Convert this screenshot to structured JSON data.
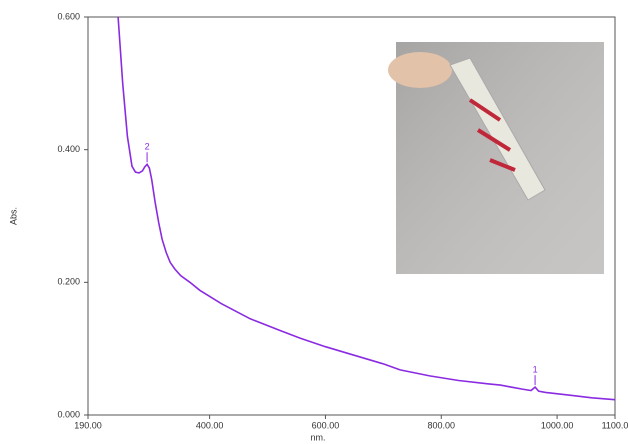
{
  "chart_data": {
    "type": "line",
    "xlabel": "nm.",
    "ylabel": "Abs.",
    "x": [
      242,
      250,
      258,
      266,
      272,
      278,
      284,
      288,
      292,
      296,
      300,
      306,
      312,
      318,
      325,
      332,
      340,
      350,
      366,
      383,
      420,
      470,
      520,
      556,
      600,
      650,
      700,
      729,
      780,
      830,
      880,
      902,
      940,
      955,
      962,
      968,
      980,
      1020,
      1060,
      1100
    ],
    "series": [
      {
        "color": "#8a2be2",
        "values": [
          0.6,
          0.5,
          0.42,
          0.375,
          0.366,
          0.365,
          0.368,
          0.374,
          0.378,
          0.372,
          0.355,
          0.32,
          0.29,
          0.265,
          0.245,
          0.23,
          0.22,
          0.21,
          0.2,
          0.188,
          0.168,
          0.145,
          0.128,
          0.116,
          0.103,
          0.09,
          0.077,
          0.068,
          0.059,
          0.052,
          0.047,
          0.045,
          0.039,
          0.037,
          0.042,
          0.036,
          0.034,
          0.03,
          0.026,
          0.023
        ]
      }
    ],
    "annotations": [
      {
        "text": "2",
        "x": 292,
        "y": 0.378
      },
      {
        "text": "1",
        "x": 962,
        "y": 0.042
      }
    ],
    "xlim": [
      190,
      1100
    ],
    "xticks": [
      {
        "value": 190,
        "label": "190.00"
      },
      {
        "value": 400,
        "label": "400.00"
      },
      {
        "value": 600,
        "label": "600.00"
      },
      {
        "value": 800,
        "label": "800.00"
      },
      {
        "value": 1000,
        "label": "1000.00"
      },
      {
        "value": 1100,
        "label": "1100.0"
      }
    ],
    "ylim": [
      0,
      0.6
    ],
    "yticks": [
      {
        "value": 0,
        "label": "0.000"
      },
      {
        "value": 0.2,
        "label": "0.200"
      },
      {
        "value": 0.4,
        "label": "0.400"
      },
      {
        "value": 0.6,
        "label": "0.600"
      }
    ],
    "grid": false
  }
}
